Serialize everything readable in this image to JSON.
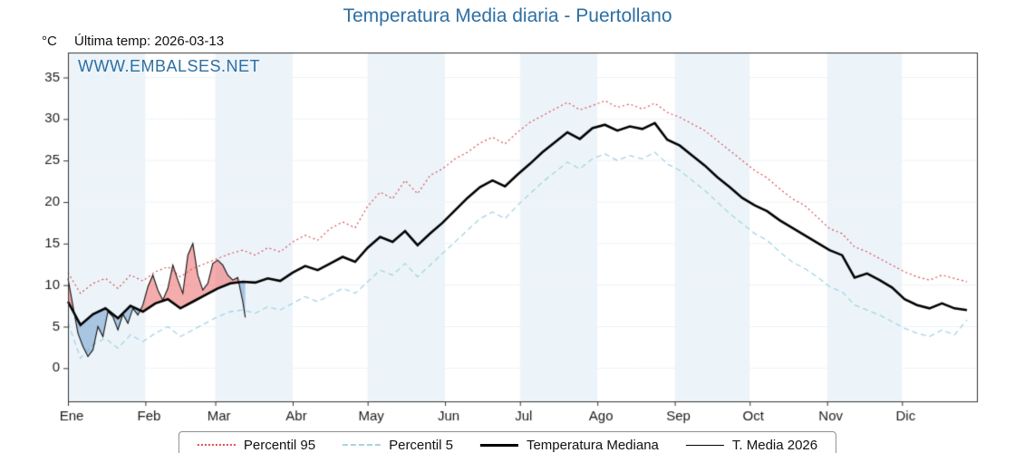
{
  "title": "Temperatura Media diaria - Puertollano",
  "header": {
    "unit": "°C",
    "last_temp": "Última temp: 2026-03-13"
  },
  "watermark": "WWW.EMBALSES.NET",
  "legend": {
    "items": [
      {
        "label": "Percentil 95"
      },
      {
        "label": "Percentil 5"
      },
      {
        "label": "Temperatura Mediana"
      },
      {
        "label": "T. Media 2026"
      }
    ]
  },
  "colors": {
    "title": "#2d6fa3",
    "watermark": "#2d6fa3",
    "p95": "#d94f4f",
    "p5": "#a6d3e3",
    "median": "#000000",
    "t2026": "#111111",
    "fill_above": "rgba(235,90,90,0.5)",
    "fill_below": "rgba(100,150,200,0.5)",
    "band": "rgba(213,231,243,0.45)",
    "grid": "#eef2f5",
    "frame": "#333333",
    "tick_text": "#1a1a1a"
  },
  "chart_data": {
    "type": "line",
    "title": "Temperatura Media diaria - Puertollano",
    "xlabel": "",
    "ylabel": "°C",
    "xlim": [
      1,
      365
    ],
    "ylim": [
      -4,
      38
    ],
    "x_ticklabels": [
      "Ene",
      "Feb",
      "Mar",
      "Abr",
      "May",
      "Jun",
      "Jul",
      "Ago",
      "Sep",
      "Oct",
      "Nov",
      "Dic"
    ],
    "month_start_days": [
      1,
      32,
      60,
      91,
      121,
      152,
      182,
      213,
      244,
      274,
      305,
      335
    ],
    "y_ticks": [
      0,
      5,
      10,
      15,
      20,
      25,
      30,
      35
    ],
    "legend_position": "bottom",
    "grid": "faint",
    "series": [
      {
        "name": "Percentil 95",
        "days": [
          1,
          6,
          11,
          16,
          21,
          26,
          31,
          36,
          41,
          46,
          51,
          56,
          61,
          66,
          71,
          76,
          81,
          86,
          91,
          96,
          101,
          106,
          111,
          116,
          121,
          126,
          131,
          136,
          141,
          146,
          151,
          156,
          161,
          166,
          171,
          176,
          181,
          186,
          191,
          196,
          201,
          206,
          211,
          216,
          221,
          226,
          231,
          236,
          241,
          246,
          251,
          256,
          261,
          266,
          271,
          276,
          281,
          286,
          291,
          296,
          301,
          306,
          311,
          316,
          321,
          326,
          331,
          336,
          341,
          346,
          351,
          356,
          361
        ],
        "values": [
          11.5,
          9.0,
          10.2,
          10.8,
          9.6,
          11.2,
          10.5,
          11.6,
          12.2,
          11.0,
          12.0,
          12.6,
          13.2,
          13.8,
          14.2,
          13.6,
          14.5,
          14.0,
          15.2,
          16.0,
          15.4,
          16.8,
          17.6,
          16.9,
          19.5,
          21.2,
          20.4,
          22.6,
          21.0,
          23.2,
          24.0,
          25.2,
          26.0,
          27.1,
          27.8,
          27.0,
          28.4,
          29.6,
          30.4,
          31.2,
          32.0,
          31.1,
          31.6,
          32.2,
          31.4,
          31.8,
          31.2,
          31.9,
          30.8,
          30.2,
          29.4,
          28.6,
          27.4,
          26.2,
          25.0,
          23.8,
          22.9,
          21.6,
          20.4,
          19.6,
          18.2,
          16.8,
          16.2,
          14.6,
          14.0,
          13.2,
          12.4,
          11.6,
          11.0,
          10.6,
          11.2,
          10.8,
          10.4
        ]
      },
      {
        "name": "Percentil 5",
        "days": [
          1,
          6,
          11,
          16,
          21,
          26,
          31,
          36,
          41,
          46,
          51,
          56,
          61,
          66,
          71,
          76,
          81,
          86,
          91,
          96,
          101,
          106,
          111,
          116,
          121,
          126,
          131,
          136,
          141,
          146,
          151,
          156,
          161,
          166,
          171,
          176,
          181,
          186,
          191,
          196,
          201,
          206,
          211,
          216,
          221,
          226,
          231,
          236,
          241,
          246,
          251,
          256,
          261,
          266,
          271,
          276,
          281,
          286,
          291,
          296,
          301,
          306,
          311,
          316,
          321,
          326,
          331,
          336,
          341,
          346,
          351,
          356,
          361
        ],
        "values": [
          5.5,
          1.2,
          2.8,
          3.6,
          2.4,
          4.0,
          3.2,
          4.2,
          5.0,
          3.8,
          4.6,
          5.4,
          6.2,
          6.8,
          7.0,
          6.6,
          7.4,
          7.0,
          7.8,
          8.6,
          8.0,
          8.8,
          9.6,
          9.0,
          10.4,
          11.8,
          11.2,
          12.6,
          11.0,
          12.4,
          13.8,
          15.2,
          16.6,
          18.0,
          18.8,
          18.0,
          19.6,
          21.0,
          22.4,
          23.6,
          24.8,
          24.0,
          25.2,
          25.8,
          25.0,
          25.6,
          25.2,
          26.0,
          24.6,
          23.8,
          22.6,
          21.4,
          20.0,
          18.6,
          17.4,
          16.2,
          15.4,
          14.0,
          12.8,
          12.0,
          11.0,
          9.8,
          9.2,
          7.6,
          7.0,
          6.4,
          5.6,
          4.8,
          4.2,
          3.8,
          4.6,
          4.0,
          5.8
        ]
      },
      {
        "name": "Temperatura Mediana",
        "days": [
          1,
          6,
          11,
          16,
          21,
          26,
          31,
          36,
          41,
          46,
          51,
          56,
          61,
          66,
          71,
          76,
          81,
          86,
          91,
          96,
          101,
          106,
          111,
          116,
          121,
          126,
          131,
          136,
          141,
          146,
          151,
          156,
          161,
          166,
          171,
          176,
          181,
          186,
          191,
          196,
          201,
          206,
          211,
          216,
          221,
          226,
          231,
          236,
          241,
          246,
          251,
          256,
          261,
          266,
          271,
          276,
          281,
          286,
          291,
          296,
          301,
          306,
          311,
          316,
          321,
          326,
          331,
          336,
          341,
          346,
          351,
          356,
          361
        ],
        "values": [
          8.0,
          5.2,
          6.5,
          7.2,
          6.0,
          7.5,
          6.8,
          7.8,
          8.3,
          7.2,
          8.0,
          8.8,
          9.6,
          10.2,
          10.4,
          10.3,
          10.8,
          10.5,
          11.5,
          12.3,
          11.8,
          12.6,
          13.4,
          12.8,
          14.5,
          15.8,
          15.2,
          16.5,
          14.8,
          16.2,
          17.5,
          19.0,
          20.5,
          21.8,
          22.6,
          21.9,
          23.3,
          24.6,
          26.0,
          27.2,
          28.4,
          27.6,
          28.9,
          29.3,
          28.6,
          29.1,
          28.8,
          29.5,
          27.5,
          26.8,
          25.6,
          24.4,
          23.0,
          21.8,
          20.5,
          19.6,
          18.9,
          17.8,
          16.9,
          16.0,
          15.1,
          14.2,
          13.6,
          10.9,
          11.4,
          10.6,
          9.7,
          8.3,
          7.6,
          7.2,
          7.8,
          7.2,
          7.0
        ]
      },
      {
        "name": "T. Media 2026",
        "days": [
          1,
          3,
          5,
          7,
          9,
          11,
          13,
          15,
          17,
          19,
          21,
          23,
          25,
          27,
          29,
          31,
          33,
          35,
          37,
          39,
          41,
          43,
          45,
          47,
          49,
          51,
          53,
          55,
          57,
          59,
          61,
          63,
          65,
          67,
          69,
          71,
          72
        ],
        "values": [
          10.8,
          7.5,
          4.2,
          2.6,
          1.4,
          2.2,
          5.0,
          3.8,
          6.8,
          6.2,
          4.6,
          6.5,
          5.4,
          7.2,
          6.4,
          7.6,
          9.8,
          11.2,
          9.4,
          8.2,
          9.6,
          12.4,
          10.6,
          9.0,
          13.6,
          15.0,
          11.2,
          9.4,
          10.2,
          12.6,
          13.0,
          12.4,
          11.2,
          10.6,
          10.9,
          8.0,
          6.1
        ]
      }
    ]
  }
}
